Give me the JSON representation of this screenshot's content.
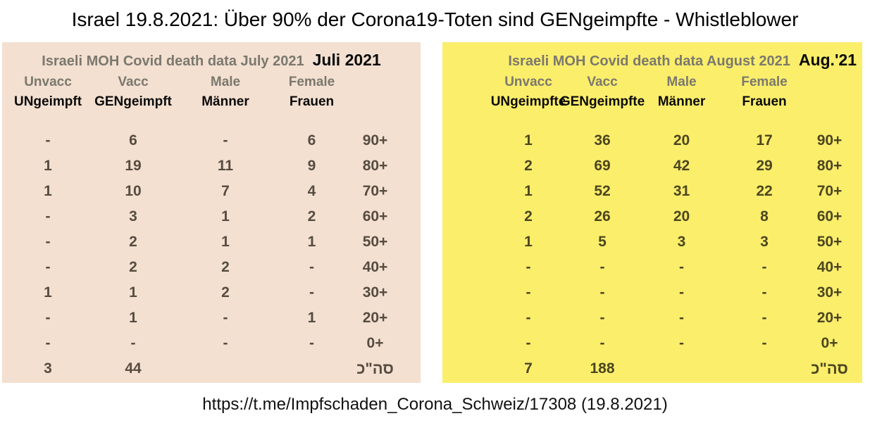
{
  "page_title": "Israel 19.8.2021: Über 90% der Corona19-Toten sind GENgeimpfte - Whistleblower",
  "footer_url": "https://t.me/Impfschaden_Corona_Schweiz/17308 (19.8.2021)",
  "colors": {
    "july_table_bg": "#f3e0d1",
    "august_table_bg": "#fbee6b",
    "muted_header_text": "#7b786e",
    "strong_text": "#0b0b0b"
  },
  "tables": [
    {
      "name": "july",
      "title_en": "Israeli MOH Covid death data July 2021",
      "title_de": "Juli 2021",
      "columns_en": [
        "Unvacc",
        "Vacc",
        "Male",
        "Female"
      ],
      "columns_de": [
        "UNgeimpft",
        "GENgeimpft",
        "Männer",
        "Frauen"
      ],
      "rows": [
        [
          "-",
          "6",
          "-",
          "6",
          "90+"
        ],
        [
          "1",
          "19",
          "11",
          "9",
          "80+"
        ],
        [
          "1",
          "10",
          "7",
          "4",
          "70+"
        ],
        [
          "-",
          "3",
          "1",
          "2",
          "60+"
        ],
        [
          "-",
          "2",
          "1",
          "1",
          "50+"
        ],
        [
          "-",
          "2",
          "2",
          "-",
          "40+"
        ],
        [
          "1",
          "1",
          "2",
          "-",
          "30+"
        ],
        [
          "-",
          "1",
          "-",
          "1",
          "20+"
        ],
        [
          "-",
          "-",
          "-",
          "-",
          "0+"
        ]
      ],
      "total": [
        "3",
        "44",
        "",
        "",
        "סה\"כ"
      ]
    },
    {
      "name": "august",
      "title_en": "Israeli MOH Covid death data August 2021",
      "title_de": "Aug.'21",
      "columns_en": [
        "Unvacc",
        "Vacc",
        "Male",
        "Female"
      ],
      "columns_de": [
        "UNgeimpfte",
        "GENgeimpfte",
        "Männer",
        "Frauen"
      ],
      "rows": [
        [
          "1",
          "36",
          "20",
          "17",
          "90+"
        ],
        [
          "2",
          "69",
          "42",
          "29",
          "80+"
        ],
        [
          "1",
          "52",
          "31",
          "22",
          "70+"
        ],
        [
          "2",
          "26",
          "20",
          "8",
          "60+"
        ],
        [
          "1",
          "5",
          "3",
          "3",
          "50+"
        ],
        [
          "-",
          "-",
          "-",
          "-",
          "40+"
        ],
        [
          "-",
          "-",
          "-",
          "-",
          "30+"
        ],
        [
          "-",
          "-",
          "-",
          "-",
          "20+"
        ],
        [
          "-",
          "-",
          "-",
          "-",
          "0+"
        ]
      ],
      "total": [
        "7",
        "188",
        "",
        "",
        "סה\"כ"
      ]
    }
  ]
}
